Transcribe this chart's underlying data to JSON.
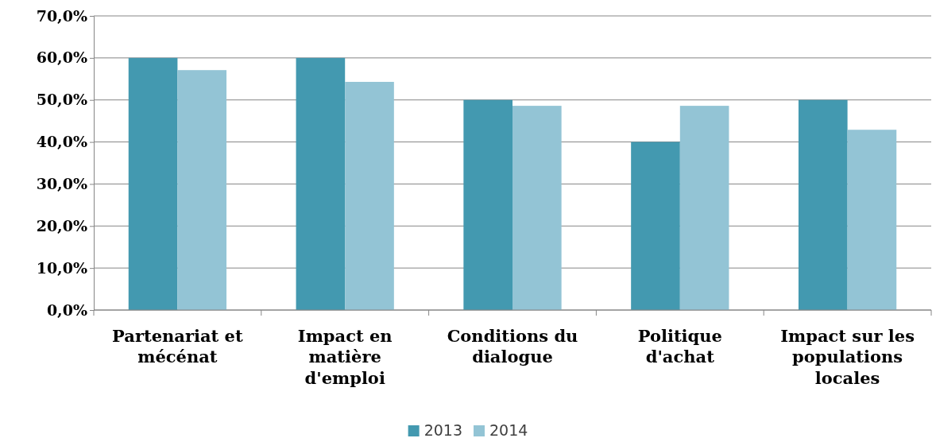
{
  "chart_data": {
    "type": "bar",
    "categories": [
      "Partenariat et mécénat",
      "Impact en matière d'emploi",
      "Conditions du dialogue",
      "Politique d'achat",
      "Impact sur les populations locales"
    ],
    "series": [
      {
        "name": "2013",
        "color": "#4399b0",
        "values": [
          60,
          60,
          50,
          40,
          50
        ]
      },
      {
        "name": "2014",
        "color": "#93c4d5",
        "values": [
          57.1,
          54.3,
          48.6,
          48.6,
          42.9
        ]
      }
    ],
    "ylim": [
      0,
      70
    ],
    "yticks": [
      {
        "value": 0,
        "label": "0,0%"
      },
      {
        "value": 10,
        "label": "10,0%"
      },
      {
        "value": 20,
        "label": "20,0%"
      },
      {
        "value": 30,
        "label": "30,0%"
      },
      {
        "value": 40,
        "label": "40,0%"
      },
      {
        "value": 50,
        "label": "50,0%"
      },
      {
        "value": 60,
        "label": "60,0%"
      },
      {
        "value": 70,
        "label": "70,0%"
      }
    ],
    "grid": "y",
    "legend": "bottom"
  }
}
